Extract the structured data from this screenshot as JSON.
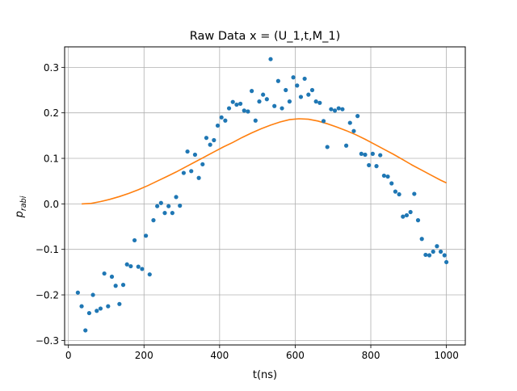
{
  "chart_data": {
    "type": "scatter",
    "title": "Raw Data x = (U_1,t,M_1)",
    "xlabel": "t(ns)",
    "ylabel": {
      "base": "p",
      "sub": "rabi"
    },
    "xlim": [
      -10,
      1050
    ],
    "ylim": [
      -0.31,
      0.345
    ],
    "xticks": [
      0,
      200,
      400,
      600,
      800,
      1000
    ],
    "yticks": [
      -0.3,
      -0.2,
      -0.1,
      0.0,
      0.1,
      0.2,
      0.3
    ],
    "xtick_labels": [
      "0",
      "200",
      "400",
      "600",
      "800",
      "1000"
    ],
    "ytick_labels": [
      "−0.3",
      "−0.2",
      "−0.1",
      "0.0",
      "0.1",
      "0.2",
      "0.3"
    ],
    "grid": true,
    "colors": {
      "points": "#1f77b4",
      "fit": "#ff7f0e",
      "grid": "#b0b0b0"
    },
    "series": [
      {
        "kind": "scatter",
        "x": [
          25,
          35,
          45,
          55,
          65,
          75,
          85,
          95,
          105,
          115,
          125,
          135,
          145,
          155,
          165,
          175,
          185,
          195,
          205,
          215,
          225,
          235,
          245,
          255,
          265,
          275,
          285,
          295,
          305,
          315,
          325,
          335,
          345,
          355,
          365,
          375,
          385,
          395,
          405,
          415,
          425,
          435,
          445,
          455,
          465,
          475,
          485,
          495,
          505,
          515,
          525,
          535,
          545,
          555,
          565,
          575,
          585,
          595,
          605,
          615,
          625,
          635,
          645,
          655,
          665,
          675,
          685,
          695,
          705,
          715,
          725,
          735,
          745,
          755,
          765,
          775,
          785,
          795,
          805,
          815,
          825,
          835,
          845,
          855,
          865,
          875,
          885,
          895,
          905,
          915,
          925,
          935,
          945,
          955,
          965,
          975,
          985,
          995,
          1000
        ],
        "y": [
          -0.195,
          -0.225,
          -0.278,
          -0.24,
          -0.2,
          -0.235,
          -0.23,
          -0.153,
          -0.225,
          -0.16,
          -0.18,
          -0.22,
          -0.178,
          -0.133,
          -0.137,
          -0.08,
          -0.138,
          -0.143,
          -0.07,
          -0.155,
          -0.036,
          -0.005,
          0.002,
          -0.02,
          -0.005,
          -0.02,
          0.015,
          -0.004,
          0.068,
          0.115,
          0.072,
          0.108,
          0.057,
          0.087,
          0.145,
          0.13,
          0.14,
          0.172,
          0.19,
          0.183,
          0.21,
          0.224,
          0.218,
          0.22,
          0.205,
          0.203,
          0.248,
          0.183,
          0.225,
          0.24,
          0.23,
          0.318,
          0.215,
          0.27,
          0.21,
          0.25,
          0.225,
          0.278,
          0.26,
          0.235,
          0.275,
          0.24,
          0.25,
          0.225,
          0.222,
          0.182,
          0.125,
          0.208,
          0.205,
          0.21,
          0.208,
          0.128,
          0.178,
          0.16,
          0.193,
          0.11,
          0.108,
          0.085,
          0.11,
          0.083,
          0.107,
          0.062,
          0.06,
          0.045,
          0.027,
          0.021,
          -0.028,
          -0.025,
          -0.018,
          0.022,
          -0.036,
          -0.077,
          -0.112,
          -0.113,
          -0.105,
          -0.093,
          -0.105,
          -0.113,
          -0.128
        ]
      },
      {
        "kind": "line",
        "x": [
          35,
          60,
          85,
          110,
          135,
          160,
          185,
          210,
          235,
          260,
          285,
          310,
          335,
          360,
          385,
          410,
          435,
          460,
          485,
          510,
          535,
          560,
          585,
          610,
          635,
          660,
          685,
          710,
          735,
          760,
          785,
          810,
          835,
          860,
          885,
          910,
          935,
          960,
          985,
          1000
        ],
        "y": [
          0.0,
          0.001,
          0.005,
          0.01,
          0.016,
          0.023,
          0.031,
          0.04,
          0.05,
          0.06,
          0.07,
          0.081,
          0.092,
          0.103,
          0.114,
          0.125,
          0.135,
          0.146,
          0.156,
          0.165,
          0.173,
          0.18,
          0.185,
          0.187,
          0.186,
          0.182,
          0.176,
          0.169,
          0.161,
          0.152,
          0.142,
          0.131,
          0.12,
          0.109,
          0.097,
          0.085,
          0.074,
          0.063,
          0.052,
          0.046
        ]
      }
    ]
  }
}
